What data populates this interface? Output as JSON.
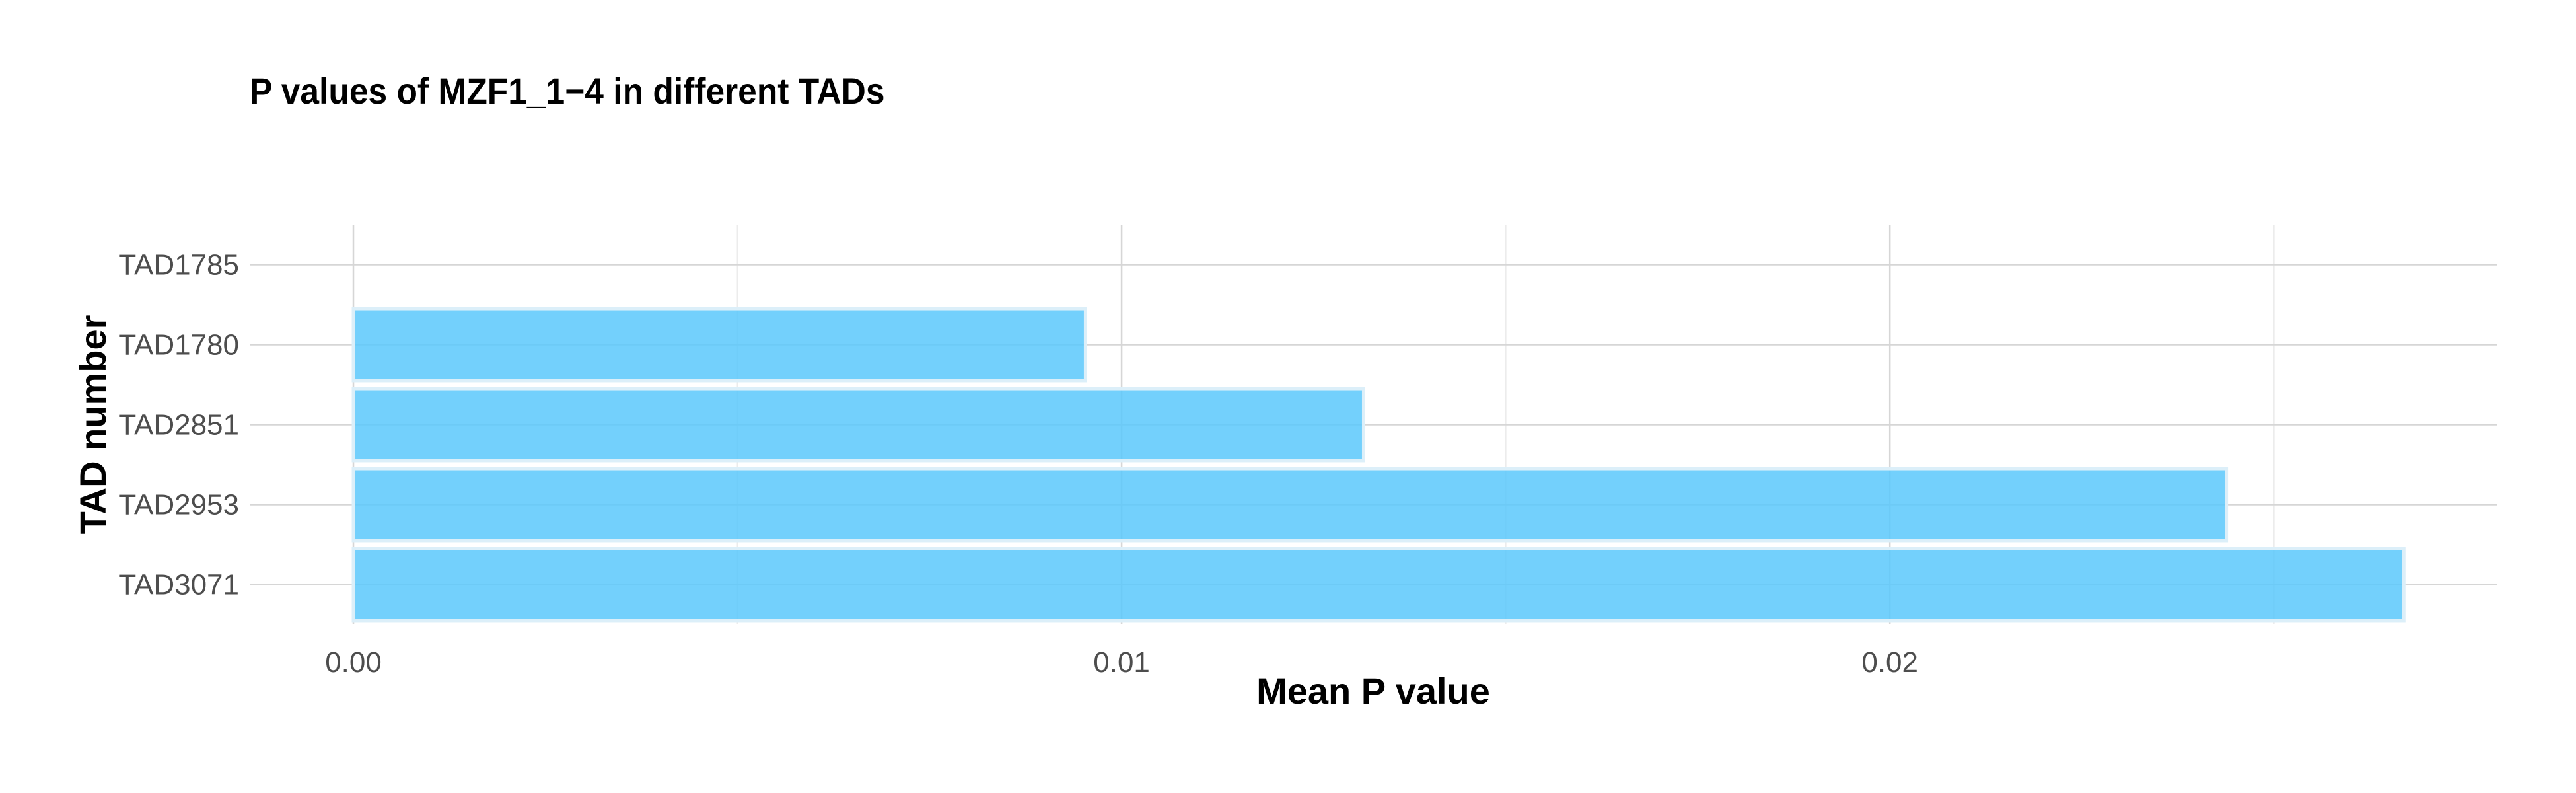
{
  "chart_data": {
    "type": "bar",
    "orientation": "horizontal",
    "title": "P values of MZF1_1−4 in different TADs",
    "xlabel": "Mean P value",
    "ylabel": "TAD number",
    "categories": [
      "TAD1785",
      "TAD1780",
      "TAD2851",
      "TAD2953",
      "TAD3071"
    ],
    "values": [
      0,
      0.00953,
      0.01315,
      0.02438,
      0.02669
    ],
    "xlim": [
      -0.00135,
      0.0279
    ],
    "xticks": [
      0,
      0.01,
      0.02
    ],
    "xtick_labels": [
      "0.00",
      "0.01",
      "0.02"
    ],
    "bar_color": "#5bc8fb",
    "bar_edge_color": "#dceff9",
    "grid": true,
    "legend": "none"
  }
}
